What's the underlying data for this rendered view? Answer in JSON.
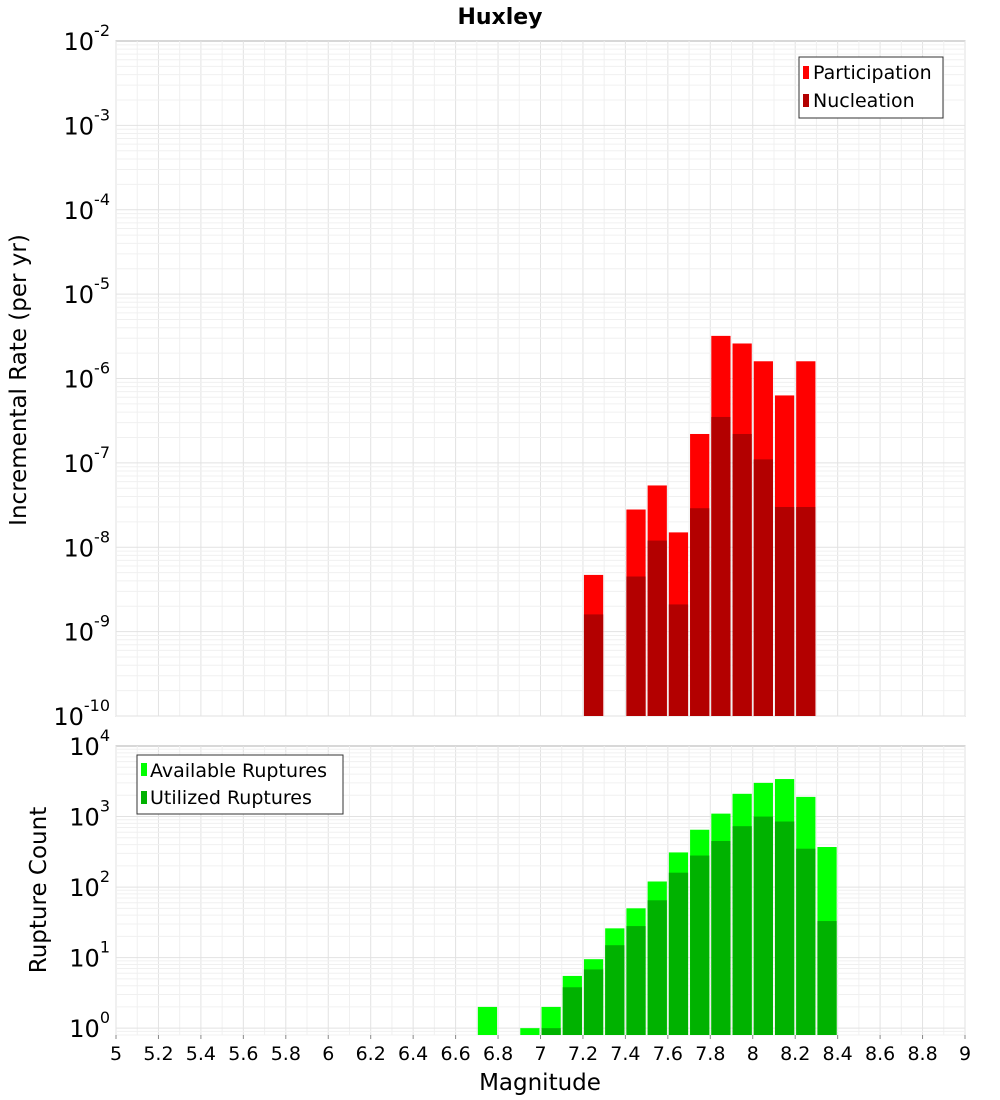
{
  "title": "Huxley",
  "chart_data": [
    {
      "type": "bar",
      "title": "Huxley",
      "ylabel": "Incremental Rate (per yr)",
      "xlabel": "",
      "y_scale": "log",
      "xlim": [
        5,
        9
      ],
      "ylim": [
        1e-10,
        0.01
      ],
      "y_ticks": [
        {
          "base": "10",
          "exp": "-10",
          "value": 1e-10
        },
        {
          "base": "10",
          "exp": "-9",
          "value": 1e-09
        },
        {
          "base": "10",
          "exp": "-8",
          "value": 1e-08
        },
        {
          "base": "10",
          "exp": "-7",
          "value": 1e-07
        },
        {
          "base": "10",
          "exp": "-6",
          "value": 1e-06
        },
        {
          "base": "10",
          "exp": "-5",
          "value": 1e-05
        },
        {
          "base": "10",
          "exp": "-4",
          "value": 0.0001
        },
        {
          "base": "10",
          "exp": "-3",
          "value": 0.001
        },
        {
          "base": "10",
          "exp": "-2",
          "value": 0.01
        }
      ],
      "grid": true,
      "legend_position": "top-right",
      "bar_width": 0.1,
      "series": [
        {
          "name": "Participation",
          "color": "#ff0000",
          "x": [
            7.25,
            7.45,
            7.55,
            7.65,
            7.75,
            7.85,
            7.95,
            8.05,
            8.15,
            8.25
          ],
          "values": [
            4.7e-09,
            2.8e-08,
            5.4e-08,
            1.5e-08,
            2.2e-07,
            3.2e-06,
            2.6e-06,
            1.6e-06,
            6.3e-07,
            1.6e-06
          ]
        },
        {
          "name": "Nucleation",
          "color": "#b30000",
          "x": [
            7.25,
            7.45,
            7.55,
            7.65,
            7.75,
            7.85,
            7.95,
            8.05,
            8.15,
            8.25
          ],
          "values": [
            1.6e-09,
            4.5e-09,
            1.2e-08,
            2.1e-09,
            2.9e-08,
            3.5e-07,
            2.2e-07,
            1.1e-07,
            3e-08,
            3e-08
          ]
        }
      ]
    },
    {
      "type": "bar",
      "ylabel": "Rupture Count",
      "xlabel": "Magnitude",
      "y_scale": "log",
      "xlim": [
        5,
        9
      ],
      "ylim": [
        0.8,
        10000.0
      ],
      "x_ticks": [
        "5",
        "5.2",
        "5.4",
        "5.6",
        "5.8",
        "6",
        "6.2",
        "6.4",
        "6.6",
        "6.8",
        "7",
        "7.2",
        "7.4",
        "7.6",
        "7.8",
        "8",
        "8.2",
        "8.4",
        "8.6",
        "8.8",
        "9"
      ],
      "y_ticks": [
        {
          "base": "10",
          "exp": "0",
          "value": 1
        },
        {
          "base": "10",
          "exp": "1",
          "value": 10
        },
        {
          "base": "10",
          "exp": "2",
          "value": 100
        },
        {
          "base": "10",
          "exp": "3",
          "value": 1000
        },
        {
          "base": "10",
          "exp": "4",
          "value": 10000
        }
      ],
      "grid": true,
      "legend_position": "top-left",
      "bar_width": 0.1,
      "series": [
        {
          "name": "Available Ruptures",
          "color": "#00ff00",
          "x": [
            6.75,
            6.95,
            7.05,
            7.15,
            7.25,
            7.35,
            7.45,
            7.55,
            7.65,
            7.75,
            7.85,
            7.95,
            8.05,
            8.15,
            8.25,
            8.35
          ],
          "values": [
            2,
            1,
            2,
            5.5,
            9.5,
            26,
            50,
            120,
            310,
            650,
            1100,
            2100,
            3000,
            3400,
            1900,
            370
          ]
        },
        {
          "name": "Utilized Ruptures",
          "color": "#00b200",
          "x": [
            7.05,
            7.15,
            7.25,
            7.35,
            7.45,
            7.55,
            7.65,
            7.75,
            7.85,
            7.95,
            8.05,
            8.15,
            8.25,
            8.35
          ],
          "values": [
            1,
            3.8,
            6.8,
            15,
            28,
            65,
            160,
            280,
            450,
            730,
            1000,
            850,
            350,
            33
          ]
        }
      ]
    }
  ]
}
